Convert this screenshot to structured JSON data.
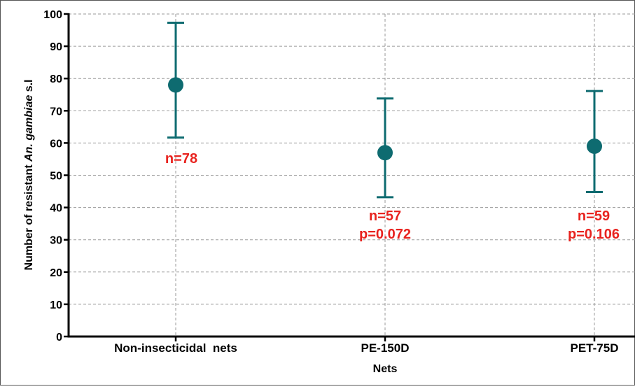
{
  "chart_data": {
    "type": "scatter",
    "xlabel": "Nets",
    "ylabel_prefix": "Number of resistant ",
    "ylabel_italic": "An. gambiae",
    "ylabel_suffix": " s.l",
    "ylim": [
      0,
      100
    ],
    "yticks": [
      0,
      10,
      20,
      30,
      40,
      50,
      60,
      70,
      80,
      90,
      100
    ],
    "grid": true,
    "categories": [
      "Non-insecticidal  nets",
      "PE-150D",
      "PET-75D"
    ],
    "points": [
      {
        "category": "Non-insecticidal  nets",
        "value": 78,
        "lower": 61.7,
        "upper": 97.3,
        "labels": [
          "n=78"
        ]
      },
      {
        "category": "PE-150D",
        "value": 57,
        "lower": 43.2,
        "upper": 73.8,
        "labels": [
          "n=57",
          "p=0.072"
        ]
      },
      {
        "category": "PET-75D",
        "value": 59,
        "lower": 44.8,
        "upper": 76.1,
        "labels": [
          "n=59",
          "p=0.106"
        ]
      }
    ],
    "colors": {
      "marker": "#0e6b70",
      "annotation": "#e8231f",
      "axis": "#000000",
      "grid": "#9a9a9a"
    }
  }
}
